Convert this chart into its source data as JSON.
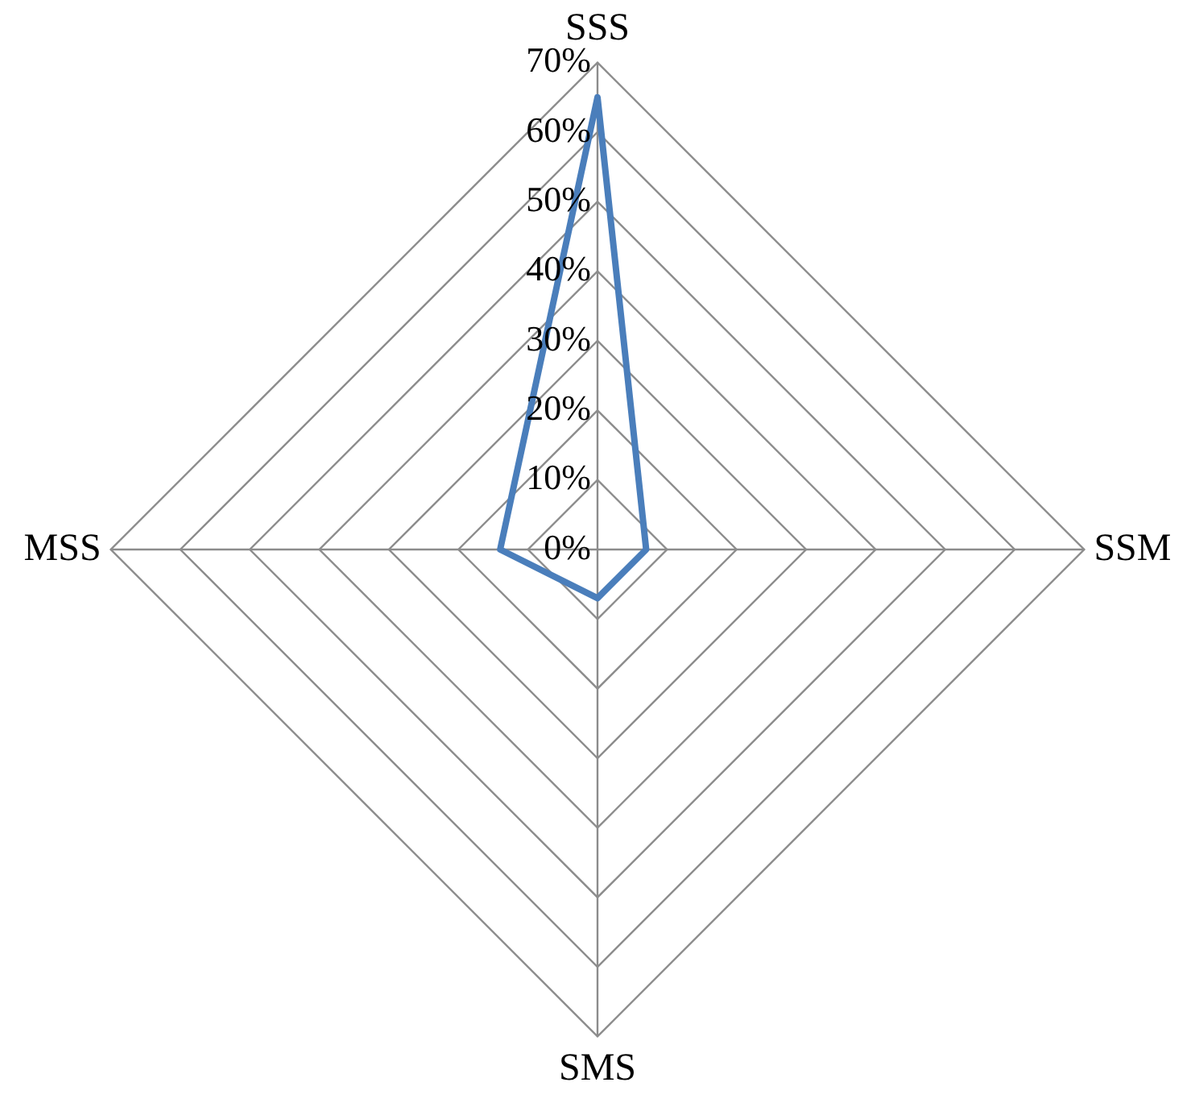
{
  "chart_data": {
    "type": "radar",
    "categories": [
      "SSS",
      "SSM",
      "SMS",
      "MSS"
    ],
    "series": [
      {
        "color": "#4a7ebb",
        "values": [
          65,
          7,
          7,
          14
        ]
      }
    ],
    "ylim": [
      0,
      70
    ],
    "yticks": [
      {
        "value": 0,
        "label": "0%"
      },
      {
        "value": 10,
        "label": "10%"
      },
      {
        "value": 20,
        "label": "20%"
      },
      {
        "value": 30,
        "label": "30%"
      },
      {
        "value": 40,
        "label": "40%"
      },
      {
        "value": 50,
        "label": "50%"
      },
      {
        "value": 60,
        "label": "60%"
      },
      {
        "value": 70,
        "label": "70%"
      }
    ],
    "grid": true,
    "legend": false,
    "marker": "none",
    "line_style": "solid"
  }
}
